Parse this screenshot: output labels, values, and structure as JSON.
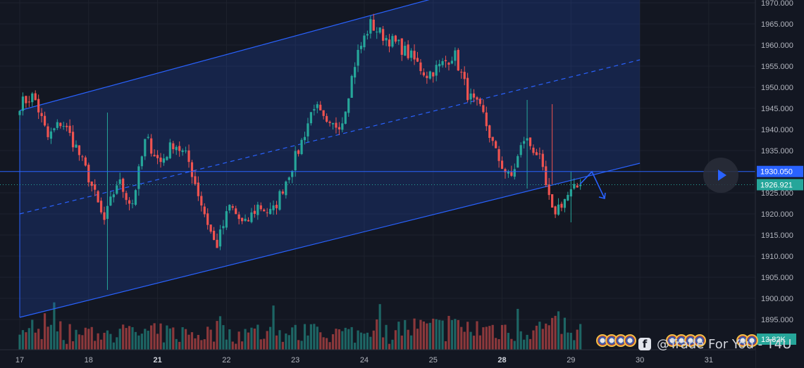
{
  "chart_data": {
    "type": "candlestick",
    "title": "",
    "y_axis": {
      "ticks": [
        1970,
        1965,
        1960,
        1955,
        1950,
        1945,
        1940,
        1935,
        1930,
        1925,
        1920,
        1915,
        1910,
        1905,
        1900,
        1895
      ],
      "labels": [
        "1970.000",
        "1965.000",
        "1960.000",
        "1955.000",
        "1950.000",
        "1945.000",
        "1940.000",
        "1935.000",
        "1930.000",
        "1925.000",
        "1920.000",
        "1915.000",
        "1910.000",
        "1905.000",
        "1900.000",
        "1895.000"
      ],
      "range": [
        1891.3,
        1970.3
      ]
    },
    "x_axis": {
      "labels": [
        {
          "text": "17",
          "bold": false,
          "i": 0
        },
        {
          "text": "18",
          "bold": false,
          "i": 22
        },
        {
          "text": "21",
          "bold": true,
          "i": 44
        },
        {
          "text": "22",
          "bold": false,
          "i": 66
        },
        {
          "text": "23",
          "bold": false,
          "i": 88
        },
        {
          "text": "24",
          "bold": false,
          "i": 110
        },
        {
          "text": "25",
          "bold": false,
          "i": 132
        },
        {
          "text": "28",
          "bold": true,
          "i": 154
        },
        {
          "text": "29",
          "bold": false,
          "i": 176
        },
        {
          "text": "30",
          "bold": false,
          "i": 198
        },
        {
          "text": "31",
          "bold": false,
          "i": 220
        }
      ]
    },
    "price_lines": [
      {
        "label": "1930.050",
        "value": 1930.05,
        "color": "#2962ff",
        "style": "solid"
      },
      {
        "label": "1926.921",
        "value": 1926.92,
        "color": "#26a69a",
        "style": "dotted"
      }
    ],
    "volume_label": "13.82K",
    "channel": {
      "upper": [
        [
          0,
          1944.5
        ],
        [
          132,
          1971
        ]
      ],
      "middle": [
        [
          0,
          1920
        ],
        [
          198,
          1956.5
        ]
      ],
      "lower": [
        [
          0,
          1895.5
        ],
        [
          198,
          1932
        ]
      ],
      "shade_end_i": 198,
      "color": "#2962ff"
    },
    "path_key_points": [
      1946,
      1948,
      1938,
      1942,
      1936,
      1928,
      1918,
      1928,
      1922,
      1938,
      1932,
      1937,
      1933,
      1922,
      1912,
      1922,
      1917,
      1922,
      1920,
      1928,
      1936,
      1946,
      1940,
      1942,
      1957,
      1965,
      1962,
      1960,
      1957,
      1953,
      1955,
      1958,
      1948,
      1944,
      1934,
      1928,
      1938,
      1934,
      1920,
      1924,
      1927
    ],
    "wicks": [
      [
        28,
        1944,
        1902
      ],
      [
        162,
        1947,
        1926
      ],
      [
        170,
        1946,
        1927
      ],
      [
        176,
        1930,
        1918
      ]
    ],
    "colors": {
      "up": "#26a69a",
      "down": "#ef5350",
      "grid": "#1e222d",
      "channel_fill": "rgba(41,98,255,0.18)"
    }
  },
  "watermark": {
    "logo": "f",
    "text": "@Trade For You - T4U"
  }
}
